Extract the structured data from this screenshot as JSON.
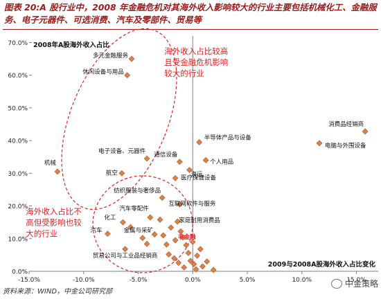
{
  "figure_title": "图表 20:A 股行业中，2008 年金融危机对其海外收入影响较大的行业主要包括机械化工、金融服务、电子元器件、可选消费、汽车及零部件、贸易等",
  "source": "资料来源：WIND，中金公司研究部",
  "watermark": "中金策略",
  "colors": {
    "marker": "#d9834a",
    "marker_edge": "#a8592a",
    "ellipse": "#e02020",
    "annotation": "#e02020",
    "title": "#9b1b1b",
    "highlight": "#e02020"
  },
  "chart_data": {
    "type": "scatter",
    "title": "2008年A股海外收入占比",
    "xlabel": "2009与2008A股海外收入占比变化",
    "ylabel": "",
    "xlim": [
      -15,
      17
    ],
    "ylim": [
      0,
      72
    ],
    "x_ticks": [
      "-15.0%",
      "-10.0%",
      "-5.0%",
      "0.0%",
      "5.0%",
      "10.0%",
      "15.0%"
    ],
    "y_ticks": [
      "0.0%",
      "10.0%",
      "20.0%",
      "30.0%",
      "40.0%",
      "50.0%",
      "60.0%",
      "70.0%"
    ],
    "grid": false,
    "labeled_points": [
      {
        "label": "多元金融服务",
        "x": -5.6,
        "y": 65
      },
      {
        "label": "休闲设备与用品",
        "x": -6.0,
        "y": 60
      },
      {
        "label": "消费品经销商",
        "x": 15.8,
        "y": 42.8
      },
      {
        "label": "半导体产品与设备",
        "x": 0.6,
        "y": 39.5
      },
      {
        "label": "电脑与外围设备",
        "x": 11.6,
        "y": 39.2
      },
      {
        "label": "电子设备、元器件",
        "x": -4.2,
        "y": 34.5
      },
      {
        "label": "通信设备",
        "x": -1.2,
        "y": 33.5
      },
      {
        "label": "个人用品",
        "x": 1.2,
        "y": 34
      },
      {
        "label": "机械",
        "x": -12.4,
        "y": 30.5
      },
      {
        "label": "航空",
        "x": -6.5,
        "y": 30
      },
      {
        "label": "海运",
        "x": -0.3,
        "y": 31
      },
      {
        "label": "医疗保健设备",
        "x": -1.6,
        "y": 28.5
      },
      {
        "label": "纺织服装与奢侈品",
        "x": -2.8,
        "y": 22.5
      },
      {
        "label": "互联网软件与服务",
        "x": -1.2,
        "y": 20.5
      },
      {
        "label": "汽车零配件",
        "x": -3.9,
        "y": 16.5
      },
      {
        "label": "化工",
        "x": -6.4,
        "y": 15
      },
      {
        "label": "家庭耐用消费品",
        "x": -1.4,
        "y": 15.2
      },
      {
        "label": "汽车",
        "x": -7.8,
        "y": 11.5
      },
      {
        "label": "金属与采矿",
        "x": -3.5,
        "y": 11.3
      },
      {
        "label": "非金融",
        "x": -1.6,
        "y": 9.5,
        "highlight": true
      },
      {
        "label": "贸易公司与工业品经销商",
        "x": -6.2,
        "y": 6.8
      }
    ],
    "unlabeled_points": [
      {
        "x": -5.7,
        "y": 13.5
      },
      {
        "x": -4.6,
        "y": 10.2
      },
      {
        "x": -4.2,
        "y": 8.4
      },
      {
        "x": -3.0,
        "y": 15.8
      },
      {
        "x": -2.7,
        "y": 11.0
      },
      {
        "x": -2.4,
        "y": 8.2
      },
      {
        "x": -2.0,
        "y": 13.4
      },
      {
        "x": -2.2,
        "y": 5.2
      },
      {
        "x": -1.7,
        "y": 4.0
      },
      {
        "x": -1.1,
        "y": 12.2
      },
      {
        "x": -0.9,
        "y": 10.4
      },
      {
        "x": -0.6,
        "y": 8.0
      },
      {
        "x": -0.4,
        "y": 5.6
      },
      {
        "x": -0.2,
        "y": 3.2
      },
      {
        "x": 0.1,
        "y": 2.2
      },
      {
        "x": 0.4,
        "y": 4.8
      },
      {
        "x": 0.7,
        "y": 6.8
      },
      {
        "x": 0.9,
        "y": 1.5
      },
      {
        "x": -0.8,
        "y": 1.2
      },
      {
        "x": 0.3,
        "y": 0.6
      },
      {
        "x": 1.3,
        "y": 3.0
      },
      {
        "x": 1.9,
        "y": 0.4
      },
      {
        "x": -1.3,
        "y": 2.6
      },
      {
        "x": 0.0,
        "y": 9.0
      }
    ],
    "annotations": [
      {
        "text": "海外收入占比较高\n且受金融危机影响\n较大的行业",
        "x": -2.6,
        "y": 66.5
      },
      {
        "text": "海外收入占比不\n高但受影响也较\n大的行业",
        "x": -15.3,
        "y": 17.5
      }
    ]
  }
}
